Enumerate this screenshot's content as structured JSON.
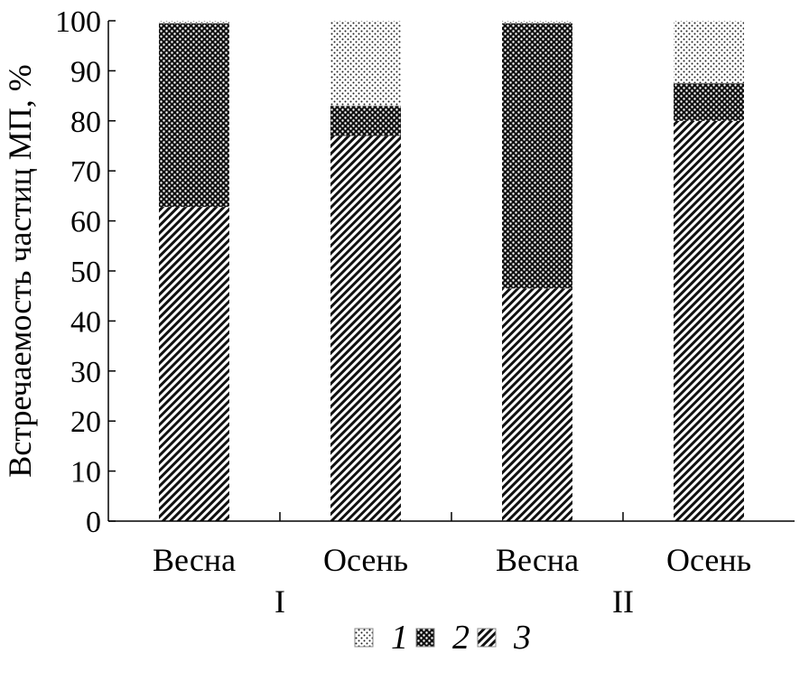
{
  "chart_data": {
    "type": "bar",
    "stacked": true,
    "ylabel": "Встречаемость частиц МП, %",
    "ylim": [
      0,
      100
    ],
    "yticks": [
      0,
      10,
      20,
      30,
      40,
      50,
      60,
      70,
      80,
      90,
      100
    ],
    "categories": [
      "Весна",
      "Осень",
      "Весна",
      "Осень"
    ],
    "groups": [
      {
        "label": "I",
        "categories": [
          0,
          1
        ]
      },
      {
        "label": "II",
        "categories": [
          2,
          3
        ]
      }
    ],
    "series": [
      {
        "name": "3",
        "pattern": "diagonal-hatch",
        "values": [
          62.8,
          77.0,
          46.5,
          80.0
        ]
      },
      {
        "name": "2",
        "pattern": "dense-dark-dots",
        "values": [
          36.7,
          6.0,
          53.0,
          7.5
        ]
      },
      {
        "name": "1",
        "pattern": "sparse-light-dots",
        "values": [
          0.5,
          17.0,
          0.5,
          12.5
        ]
      }
    ],
    "legend": {
      "placement": "bottom",
      "order": [
        "1",
        "2",
        "3"
      ]
    },
    "grid": false
  }
}
